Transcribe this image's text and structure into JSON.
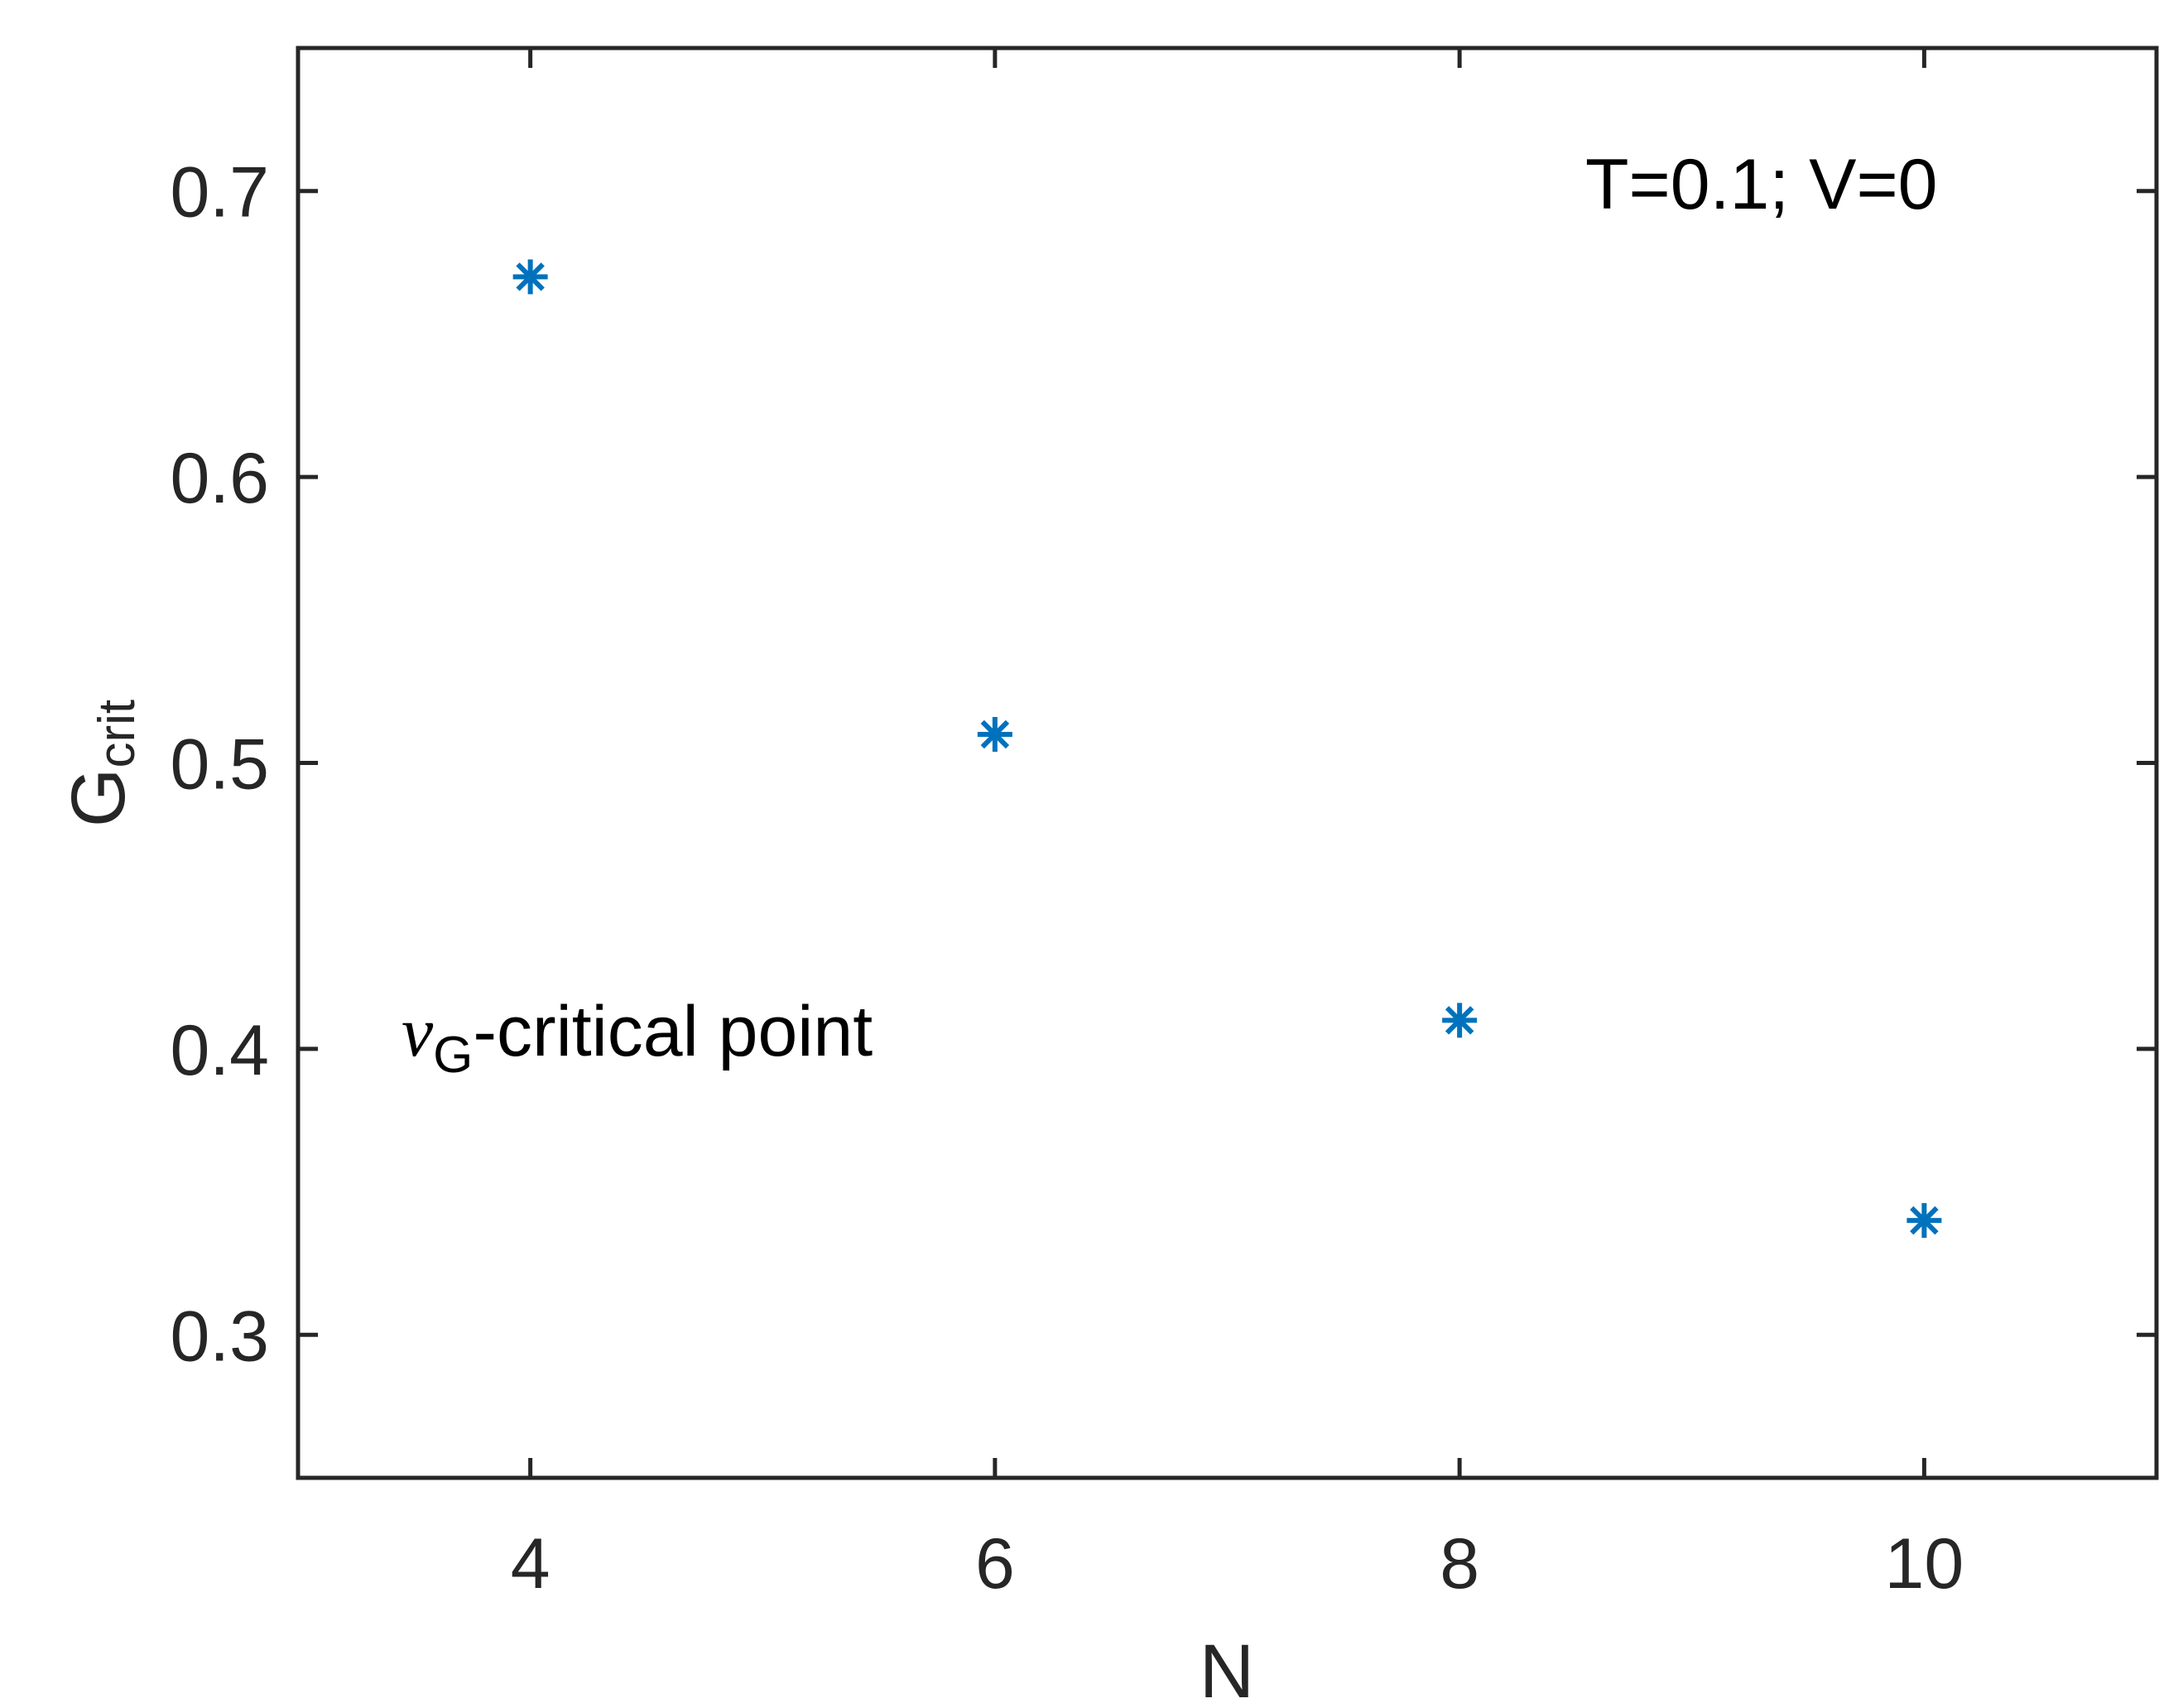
{
  "chart_data": {
    "type": "scatter",
    "marker": "asterisk",
    "series": [
      {
        "x": [
          4,
          6,
          8,
          10
        ],
        "y": [
          0.67,
          0.51,
          0.41,
          0.34
        ],
        "color": "#0072BD"
      }
    ],
    "xlabel": "N",
    "ylabel": {
      "base": "G",
      "subscript": "crit"
    },
    "xlim": [
      3,
      11
    ],
    "ylim": [
      0.25,
      0.75
    ],
    "xticks": [
      4,
      6,
      8,
      10
    ],
    "xtick_labels": [
      "4",
      "6",
      "8",
      "10"
    ],
    "yticks": [
      0.3,
      0.4,
      0.5,
      0.6,
      0.7
    ],
    "ytick_labels": [
      "0.3",
      "0.4",
      "0.5",
      "0.6",
      "0.7"
    ],
    "grid": false,
    "box": true,
    "annotations": {
      "params": "T=0.1; V=0",
      "critical_label": {
        "symbol": "ν",
        "subscript": "G",
        "text": "-critical point"
      }
    },
    "colors": {
      "axis": "#262626",
      "marker": "#0072BD"
    }
  }
}
